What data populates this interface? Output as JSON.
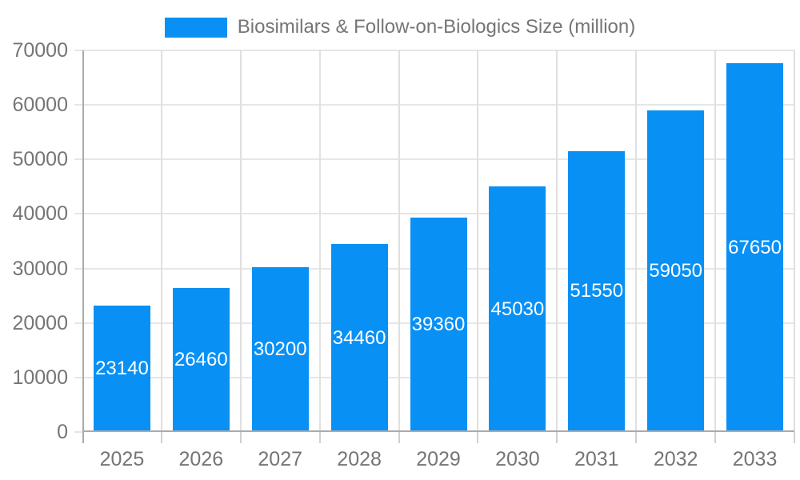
{
  "legend": {
    "label": "Biosimilars & Follow-on-Biologics Size (million)"
  },
  "chart_data": {
    "type": "bar",
    "title": "Biosimilars & Follow-on-Biologics Size (million)",
    "categories": [
      "2025",
      "2026",
      "2027",
      "2028",
      "2029",
      "2030",
      "2031",
      "2032",
      "2033"
    ],
    "values": [
      23140,
      26460,
      30200,
      34460,
      39360,
      45030,
      51550,
      59050,
      67650
    ],
    "value_labels": [
      "23140",
      "26460",
      "30200",
      "34460",
      "39360",
      "45030",
      "51550",
      "59050",
      "67650"
    ],
    "ylabel": "",
    "xlabel": "",
    "ylim": [
      0,
      70000
    ],
    "ytick_step": 10000,
    "ytick_labels": [
      "0",
      "10000",
      "20000",
      "30000",
      "40000",
      "50000",
      "60000",
      "70000"
    ],
    "grid": true,
    "legend_position": "top"
  },
  "colors": {
    "bar": "#0890f5",
    "grid_horizontal": "#e6e6e6",
    "grid_vertical": "#e0e0e0",
    "axis_line": "#ababab",
    "axis_text": "#757575",
    "bar_label_text": "#ffffff",
    "background": "#ffffff"
  }
}
